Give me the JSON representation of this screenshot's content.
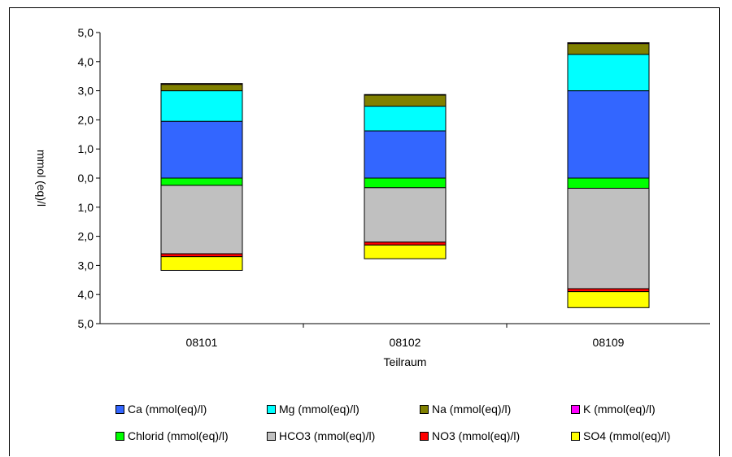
{
  "chart_data": {
    "type": "bar",
    "stacked": true,
    "diverging": true,
    "categories": [
      "08101",
      "08102",
      "08109"
    ],
    "xlabel": "Teilraum",
    "ylabel": "mmol (eq)/l",
    "ylim": [
      -5,
      5
    ],
    "y_tick_labels": [
      "5,0",
      "4,0",
      "3,0",
      "2,0",
      "1,0",
      "0,0",
      "1,0",
      "2,0",
      "3,0",
      "4,0",
      "5,0"
    ],
    "grid": false,
    "legend_position": "bottom",
    "positive_series": [
      {
        "name": "Ca (mmol(eq)/l)",
        "color": "#3366ff",
        "values": [
          1.95,
          1.62,
          3.0
        ]
      },
      {
        "name": "Mg (mmol(eq)/l)",
        "color": "#00ffff",
        "values": [
          1.05,
          0.85,
          1.25
        ]
      },
      {
        "name": "Na (mmol(eq)/l)",
        "color": "#808000",
        "values": [
          0.22,
          0.38,
          0.37
        ]
      },
      {
        "name": "K (mmol(eq)/l)",
        "color": "#ff00ff",
        "values": [
          0.03,
          0.02,
          0.03
        ]
      }
    ],
    "negative_series": [
      {
        "name": "Chlorid (mmol(eq)/l)",
        "color": "#00ff00",
        "values": [
          0.25,
          0.33,
          0.35
        ]
      },
      {
        "name": "HCO3 (mmol(eq)/l)",
        "color": "#c0c0c0",
        "values": [
          2.35,
          1.87,
          3.45
        ]
      },
      {
        "name": "NO3 (mmol(eq)/l)",
        "color": "#ff0000",
        "values": [
          0.1,
          0.1,
          0.1
        ]
      },
      {
        "name": "SO4 (mmol(eq)/l)",
        "color": "#ffff00",
        "values": [
          0.47,
          0.47,
          0.55
        ]
      }
    ]
  },
  "legend": {
    "rows": [
      [
        "Ca (mmol(eq)/l)",
        "Mg (mmol(eq)/l)",
        "Na (mmol(eq)/l)",
        "K (mmol(eq)/l)"
      ],
      [
        "Chlorid (mmol(eq)/l)",
        "HCO3 (mmol(eq)/l)",
        "NO3 (mmol(eq)/l)",
        "SO4 (mmol(eq)/l)"
      ]
    ]
  }
}
